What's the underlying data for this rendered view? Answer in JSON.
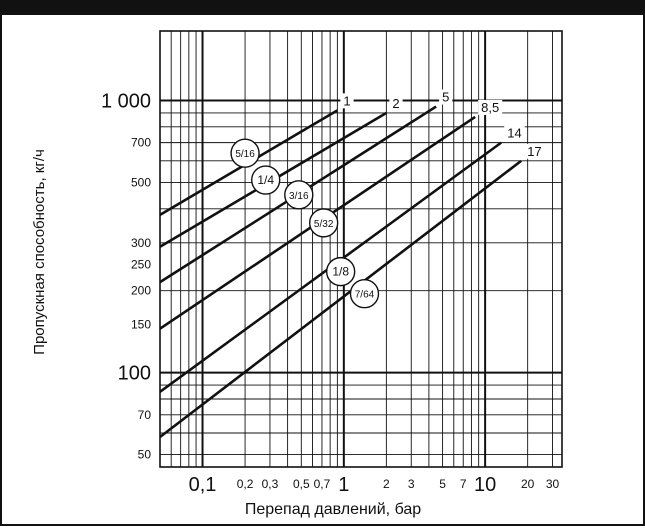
{
  "header": {
    "title": ""
  },
  "colors": {
    "lines": "#111111",
    "grid": "#111111",
    "header_bg": "#111111",
    "background": "#ffffff"
  },
  "chart_data": {
    "type": "line",
    "x_scale": "log",
    "y_scale": "log",
    "xlim": [
      0.05,
      35
    ],
    "ylim": [
      45,
      1800
    ],
    "grid": true,
    "xlabel": "Перепад давлений, бар",
    "ylabel": "Пропускная способность, кг/ч",
    "x_tick_labels": [
      {
        "value": 0.1,
        "label": "0,1",
        "major": true
      },
      {
        "value": 0.2,
        "label": "0,2",
        "major": false
      },
      {
        "value": 0.3,
        "label": "0,3",
        "major": false
      },
      {
        "value": 0.5,
        "label": "0,5",
        "major": false
      },
      {
        "value": 0.7,
        "label": "0,7",
        "major": false
      },
      {
        "value": 1,
        "label": "1",
        "major": true
      },
      {
        "value": 2,
        "label": "2",
        "major": false
      },
      {
        "value": 3,
        "label": "3",
        "major": false
      },
      {
        "value": 5,
        "label": "5",
        "major": false
      },
      {
        "value": 7,
        "label": "7",
        "major": false
      },
      {
        "value": 10,
        "label": "10",
        "major": true
      },
      {
        "value": 20,
        "label": "20",
        "major": false
      },
      {
        "value": 30,
        "label": "30",
        "major": false
      }
    ],
    "y_tick_labels": [
      {
        "value": 50,
        "label": "50",
        "major": false
      },
      {
        "value": 70,
        "label": "70",
        "major": false
      },
      {
        "value": 100,
        "label": "100",
        "major": true
      },
      {
        "value": 150,
        "label": "150",
        "major": false
      },
      {
        "value": 200,
        "label": "200",
        "major": false
      },
      {
        "value": 250,
        "label": "250",
        "major": false
      },
      {
        "value": 300,
        "label": "300",
        "major": false
      },
      {
        "value": 500,
        "label": "500",
        "major": false
      },
      {
        "value": 700,
        "label": "700",
        "major": false
      },
      {
        "value": 1000,
        "label": "1 000",
        "major": true
      }
    ],
    "series": [
      {
        "name": "5/16",
        "pressure_label": "1",
        "x": [
          0.05,
          0.9
        ],
        "y": [
          380,
          920
        ]
      },
      {
        "name": "1/4",
        "pressure_label": "2",
        "x": [
          0.05,
          2.0
        ],
        "y": [
          290,
          900
        ]
      },
      {
        "name": "3/16",
        "pressure_label": "5",
        "x": [
          0.05,
          4.5
        ],
        "y": [
          215,
          950
        ]
      },
      {
        "name": "5/32",
        "pressure_label": "8,5",
        "x": [
          0.05,
          8.5
        ],
        "y": [
          145,
          870
        ]
      },
      {
        "name": "1/8",
        "pressure_label": "14",
        "x": [
          0.05,
          13.0
        ],
        "y": [
          85,
          700
        ]
      },
      {
        "name": "7/64",
        "pressure_label": "17",
        "x": [
          0.05,
          18.0
        ],
        "y": [
          58,
          600
        ]
      }
    ],
    "circle_label_positions": [
      {
        "name": "5/16",
        "x": 0.2,
        "y": 640
      },
      {
        "name": "1/4",
        "x": 0.28,
        "y": 510
      },
      {
        "name": "3/16",
        "x": 0.48,
        "y": 450
      },
      {
        "name": "5/32",
        "x": 0.72,
        "y": 355
      },
      {
        "name": "1/8",
        "x": 0.95,
        "y": 235
      },
      {
        "name": "7/64",
        "x": 1.4,
        "y": 195
      }
    ]
  }
}
